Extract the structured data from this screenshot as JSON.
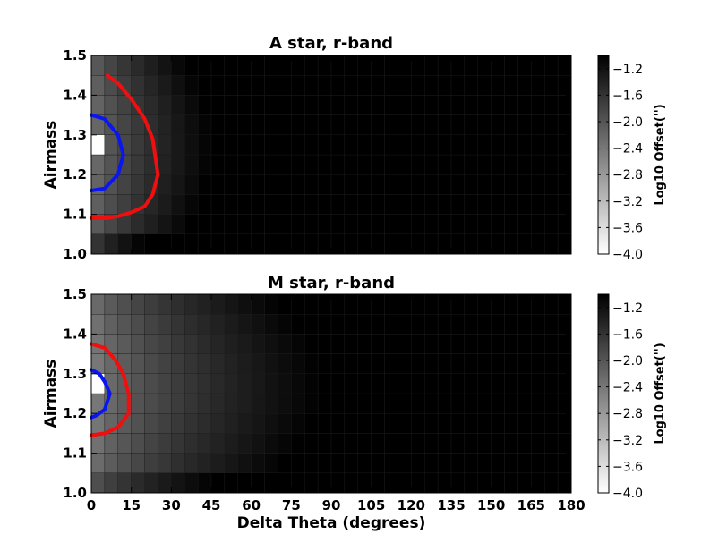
{
  "chart_data": [
    {
      "type": "heatmap",
      "title": "A star, r-band",
      "xlabel": "",
      "ylabel": "Airmass",
      "xlim": [
        0,
        180
      ],
      "ylim": [
        1.0,
        1.5
      ],
      "xticks": [
        "0",
        "15",
        "30",
        "45",
        "60",
        "75",
        "90",
        "105",
        "120",
        "135",
        "150",
        "165",
        "180"
      ],
      "yticks": [
        "1.0",
        "1.1",
        "1.2",
        "1.3",
        "1.4",
        "1.5"
      ],
      "x_bin_width": 5,
      "y_bin_edges": [
        1.0,
        1.05,
        1.1,
        1.15,
        1.2,
        1.25,
        1.3,
        1.35,
        1.4,
        1.45,
        1.5
      ],
      "colorbar": {
        "label": "Log10 Offset('')",
        "range": [
          -4.0,
          -1.0
        ],
        "ticks": [
          "-1.2",
          "-1.6",
          "-2.0",
          "-2.4",
          "-2.8",
          "-3.2",
          "-3.6",
          "-4.0"
        ]
      },
      "field": {
        "base": -2.4,
        "x_slope": -0.3,
        "x_exp": 0.7,
        "y_center": 1.27,
        "y_coef": 4.5,
        "floor": -4.0,
        "last_row_offset": 0.35
      },
      "contours": [
        {
          "color": "#0a16f0",
          "points": [
            [
              0,
              1.35
            ],
            [
              5,
              1.34
            ],
            [
              10,
              1.3
            ],
            [
              12,
              1.25
            ],
            [
              10,
              1.2
            ],
            [
              5,
              1.165
            ],
            [
              0,
              1.16
            ]
          ]
        },
        {
          "color": "#ef0f0f",
          "points": [
            [
              6,
              1.45
            ],
            [
              10,
              1.43
            ],
            [
              15,
              1.39
            ],
            [
              20,
              1.34
            ],
            [
              23,
              1.29
            ],
            [
              25,
              1.2
            ],
            [
              23,
              1.15
            ],
            [
              20,
              1.12
            ],
            [
              15,
              1.105
            ],
            [
              10,
              1.095
            ],
            [
              5,
              1.09
            ],
            [
              0,
              1.09
            ]
          ]
        }
      ]
    },
    {
      "type": "heatmap",
      "title": "M star, r-band",
      "xlabel": "Delta Theta (degrees)",
      "ylabel": "Airmass",
      "xlim": [
        0,
        180
      ],
      "ylim": [
        1.0,
        1.5
      ],
      "xticks": [
        "0",
        "15",
        "30",
        "45",
        "60",
        "75",
        "90",
        "105",
        "120",
        "135",
        "150",
        "165",
        "180"
      ],
      "yticks": [
        "1.0",
        "1.1",
        "1.2",
        "1.3",
        "1.4",
        "1.5"
      ],
      "x_bin_width": 5,
      "y_bin_edges": [
        1.0,
        1.05,
        1.1,
        1.15,
        1.2,
        1.25,
        1.3,
        1.35,
        1.4,
        1.45,
        1.5
      ],
      "colorbar": {
        "label": "Log10 Offset('')",
        "range": [
          -4.0,
          -1.0
        ],
        "ticks": [
          "-1.2",
          "-1.6",
          "-2.0",
          "-2.4",
          "-2.8",
          "-3.2",
          "-3.6",
          "-4.0"
        ]
      },
      "field": {
        "base": -2.6,
        "x_slope": -0.29,
        "x_exp": 0.6,
        "y_center": 1.27,
        "y_coef": 4.0,
        "floor": -4.0,
        "last_row_offset": 0.25
      },
      "contours": [
        {
          "color": "#0a16f0",
          "points": [
            [
              0,
              1.31
            ],
            [
              3,
              1.3
            ],
            [
              5,
              1.28
            ],
            [
              7,
              1.25
            ],
            [
              5,
              1.21
            ],
            [
              2,
              1.195
            ],
            [
              0,
              1.19
            ]
          ]
        },
        {
          "color": "#ef0f0f",
          "points": [
            [
              0,
              1.375
            ],
            [
              5,
              1.365
            ],
            [
              9,
              1.335
            ],
            [
              12,
              1.3
            ],
            [
              14,
              1.25
            ],
            [
              14,
              1.2
            ],
            [
              10,
              1.165
            ],
            [
              5,
              1.15
            ],
            [
              0,
              1.145
            ]
          ]
        }
      ]
    }
  ]
}
